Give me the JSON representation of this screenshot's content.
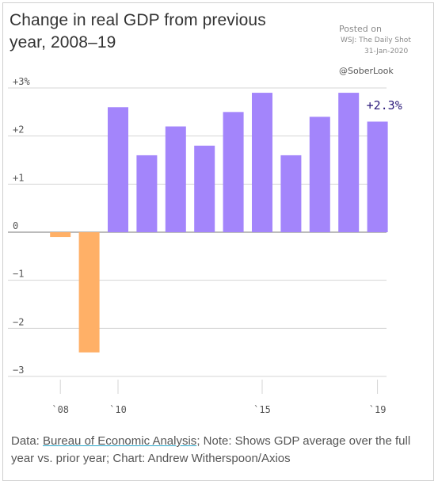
{
  "header": {
    "title": "Change in real GDP from previous year, 2008–19",
    "posted_line1": "Posted on",
    "posted_line2": "WSJ: The Daily Shot",
    "posted_line3": "31-Jan-2020",
    "handle": "@SoberLook"
  },
  "chart_data": {
    "type": "bar",
    "title": "Change in real GDP from previous year, 2008–19",
    "categories": [
      2008,
      2009,
      2010,
      2011,
      2012,
      2013,
      2014,
      2015,
      2016,
      2017,
      2018,
      2019
    ],
    "values": [
      -0.1,
      -2.5,
      2.6,
      1.6,
      2.2,
      1.8,
      2.5,
      2.9,
      1.6,
      2.4,
      2.9,
      2.3
    ],
    "ylim": [
      -3,
      3
    ],
    "yticks": [
      3,
      2,
      1,
      0,
      -1,
      -2,
      -3
    ],
    "ytick_labels": [
      "+3%",
      "+2",
      "+1",
      "0",
      "−1",
      "−2",
      "−3"
    ],
    "xtick_labels": [
      {
        "category": 2008,
        "label": "`08"
      },
      {
        "category": 2010,
        "label": "`10"
      },
      {
        "category": 2015,
        "label": "`15"
      },
      {
        "category": 2019,
        "label": "`19"
      }
    ],
    "annotation": {
      "category": 2019,
      "text": "+2.3%"
    },
    "colors": {
      "positive": "#a385fb",
      "negative": "#ffb067",
      "grid": "#d4d4d4",
      "zero_line": "#777777"
    },
    "grid": true,
    "xlabel": "",
    "ylabel": ""
  },
  "footer": {
    "prefix": "Data: ",
    "source_link": "Bureau of Economic Analysis",
    "rest": "; Note: Shows GDP average over the full year vs. prior year; Chart: Andrew Witherspoon/Axios"
  }
}
